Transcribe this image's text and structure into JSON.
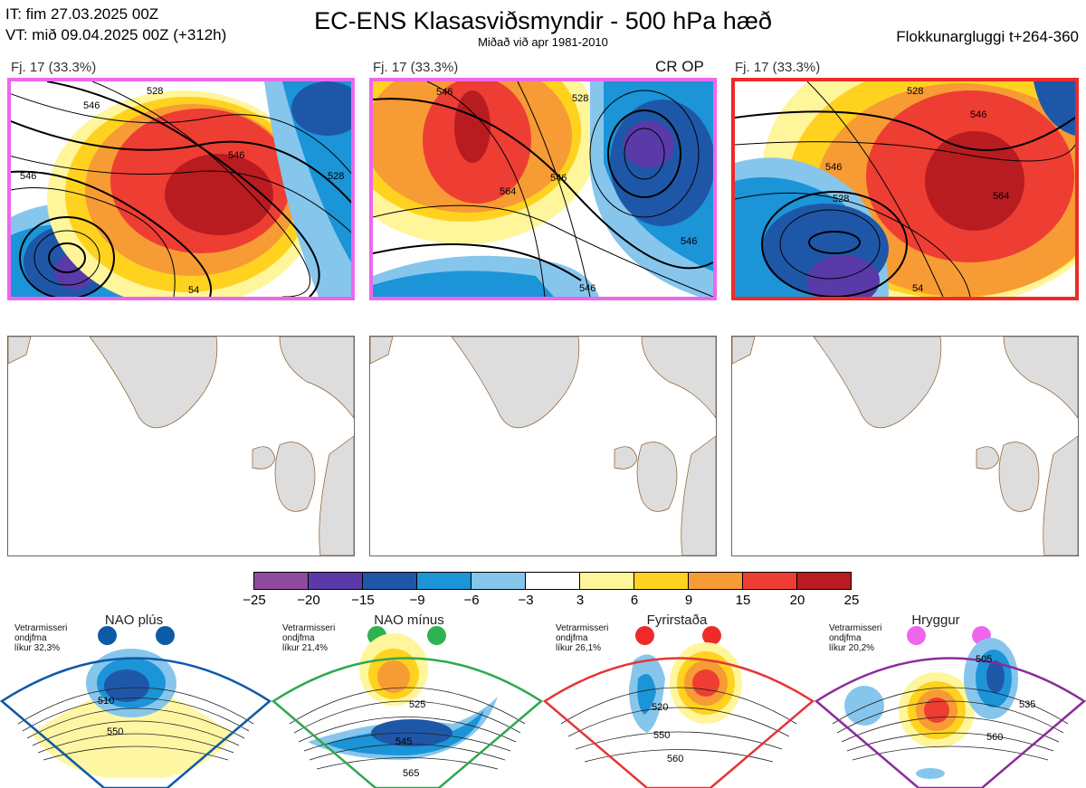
{
  "header": {
    "init_time": "IT: fim 27.03.2025 00Z",
    "valid_time": "VT: mið 09.04.2025 00Z  (+312h)",
    "title": "EC-ENS Klasasviðsmyndir - 500 hPa hæð",
    "subtitle": "Miðað við apr 1981-2010",
    "cluster_window": "Flokkunargluggi t+264-360"
  },
  "panels": [
    {
      "label": "Fj. 17 (33.3%)",
      "frame_color": "#ee66ee",
      "contour_labels": [
        "528",
        "546",
        "546",
        "528",
        "546",
        "54"
      ]
    },
    {
      "label": "Fj. 17 (33.3%)",
      "frame_color": "#ee66ee",
      "badge": "CR OP",
      "contour_labels": [
        "528",
        "546",
        "546",
        "546",
        "564",
        "546"
      ]
    },
    {
      "label": "Fj. 17 (33.3%)",
      "frame_color": "#ee2a2a",
      "contour_labels": [
        "528",
        "546",
        "546",
        "528",
        "564",
        "54"
      ]
    }
  ],
  "colorbar": {
    "ticks": [
      "−25",
      "−20",
      "−15",
      "−9",
      "−6",
      "−3",
      "3",
      "6",
      "9",
      "15",
      "20",
      "25"
    ],
    "colors": [
      "#8e4a9e",
      "#5a3aa8",
      "#1f57a8",
      "#1b94d8",
      "#86c6ec",
      "#ffffff",
      "#fff59a",
      "#ffd21f",
      "#f79b34",
      "#ee3d33",
      "#b81c20"
    ]
  },
  "regimes": [
    {
      "name": "NAO plús",
      "stat_line1": "Vetrarmisseri",
      "stat_line2": "ondjfma",
      "stat_line3": "líkur 32,3%",
      "color": "#0d5aa7",
      "dot_color": "#0d5aa7",
      "contour_labels": [
        "510",
        "550"
      ]
    },
    {
      "name": "NAO mínus",
      "stat_line1": "Vetrarmisseri",
      "stat_line2": "ondjfma",
      "stat_line3": "líkur 21,4%",
      "color": "#2fa84f",
      "dot_color": "#2fb350",
      "contour_labels": [
        "525",
        "545",
        "565"
      ]
    },
    {
      "name": "Fyrirstaða",
      "stat_line1": "Vetrarmisseri",
      "stat_line2": "ondjfma",
      "stat_line3": "líkur 26,1%",
      "color": "#e53535",
      "dot_color": "#ee2a2a",
      "contour_labels": [
        "520",
        "550",
        "560"
      ]
    },
    {
      "name": "Hryggur",
      "stat_line1": "Vetrarmisseri",
      "stat_line2": "ondjfma",
      "stat_line3": "líkur 20,2%",
      "color": "#8b2c9a",
      "dot_color": "#ee66ee",
      "contour_labels": [
        "505",
        "535",
        "560"
      ]
    }
  ]
}
